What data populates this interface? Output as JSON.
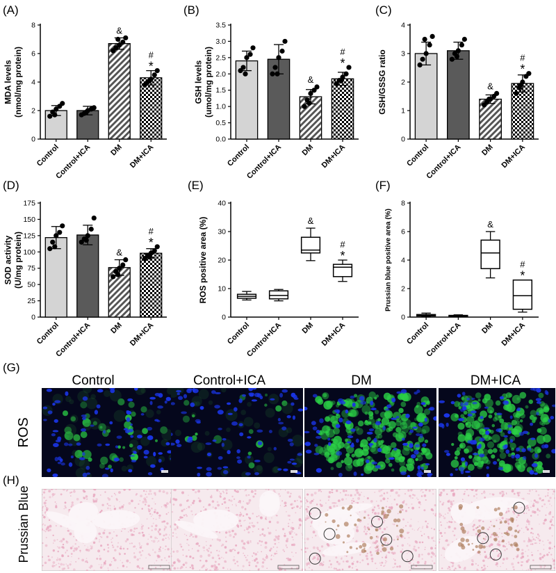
{
  "panels": {
    "A": "(A)",
    "B": "(B)",
    "C": "(C)",
    "D": "(D)",
    "E": "(E)",
    "F": "(F)",
    "G": "(G)",
    "H": "(H)"
  },
  "colors": {
    "control": "#d4d4d4",
    "control_ica": "#5a5a5a",
    "dm_hatch": "#555555",
    "checker": "#000000",
    "ros_bg": "#05071c",
    "ros_nuclei": "#1a35e6",
    "ros_green": "#2bd046",
    "pb_bg": "#f6eaee",
    "pb_pink": "#e8a9c0",
    "pb_brown": "#b08263"
  },
  "micro": {
    "columns": [
      "Control",
      "Control+ICA",
      "DM",
      "DM+ICA"
    ],
    "row_ros": "ROS",
    "row_pb": "Prussian Blue",
    "ros_green_level": [
      0.15,
      0.06,
      0.95,
      0.75
    ],
    "pb_circles": [
      0,
      0,
      6,
      3
    ]
  },
  "chart_data": [
    {
      "type": "bar",
      "panel": "(A)",
      "ylabel": "MDA levels\n(nmol/mg protein)",
      "categories": [
        "Control",
        "Control+ICA",
        "DM",
        "DM+ICA"
      ],
      "values": [
        2.0,
        2.0,
        6.7,
        4.3
      ],
      "errors": [
        0.35,
        0.3,
        0.4,
        0.5
      ],
      "points": [
        [
          1.6,
          1.9,
          2.1,
          2.3,
          2.5,
          1.7
        ],
        [
          1.7,
          1.8,
          2.0,
          2.1,
          2.2,
          1.9
        ],
        [
          6.2,
          6.4,
          6.6,
          6.8,
          7.1,
          7.0
        ],
        [
          3.8,
          4.0,
          4.2,
          4.5,
          4.8,
          4.1
        ]
      ],
      "ylim": [
        0,
        8
      ],
      "yticks": [
        0,
        2,
        4,
        6,
        8
      ],
      "annotations": [
        {
          "index": 2,
          "marks": [
            "&"
          ]
        },
        {
          "index": 3,
          "marks": [
            "#",
            "*"
          ]
        }
      ]
    },
    {
      "type": "bar",
      "panel": "(B)",
      "ylabel": "GSH levels\n(umol/mg protein)",
      "categories": [
        "Control",
        "Control+ICA",
        "DM",
        "DM+ICA"
      ],
      "values": [
        2.4,
        2.45,
        1.3,
        1.85
      ],
      "errors": [
        0.3,
        0.45,
        0.22,
        0.2
      ],
      "points": [
        [
          2.1,
          2.2,
          2.5,
          2.6,
          2.8,
          2.0
        ],
        [
          2.0,
          2.2,
          2.5,
          2.7,
          3.0,
          2.0
        ],
        [
          1.0,
          1.2,
          1.4,
          1.5,
          1.6,
          1.1
        ],
        [
          1.7,
          1.8,
          1.9,
          2.0,
          2.2,
          1.8
        ]
      ],
      "ylim": [
        0,
        3.5
      ],
      "yticks": [
        0.0,
        0.5,
        1.0,
        1.5,
        2.0,
        2.5,
        3.0,
        3.5
      ],
      "annotations": [
        {
          "index": 2,
          "marks": [
            "&"
          ]
        },
        {
          "index": 3,
          "marks": [
            "#",
            "*"
          ]
        }
      ]
    },
    {
      "type": "bar",
      "panel": "(C)",
      "ylabel": "GSH/GSSG ratio",
      "categories": [
        "Control",
        "Control+ICA",
        "DM",
        "DM+ICA"
      ],
      "values": [
        3.0,
        3.1,
        1.4,
        1.95
      ],
      "errors": [
        0.4,
        0.3,
        0.15,
        0.3
      ],
      "points": [
        [
          2.6,
          2.8,
          3.0,
          3.3,
          3.6,
          3.5
        ],
        [
          2.8,
          3.0,
          3.1,
          3.3,
          3.5,
          2.9
        ],
        [
          1.2,
          1.3,
          1.4,
          1.5,
          1.6,
          1.4
        ],
        [
          1.6,
          1.8,
          2.0,
          2.2,
          2.3,
          1.9
        ]
      ],
      "ylim": [
        0,
        4
      ],
      "yticks": [
        0,
        1,
        2,
        3,
        4
      ],
      "annotations": [
        {
          "index": 2,
          "marks": [
            "&"
          ]
        },
        {
          "index": 3,
          "marks": [
            "#",
            "*"
          ]
        }
      ]
    },
    {
      "type": "bar",
      "panel": "(D)",
      "ylabel": "SOD activity\n(U/mg protein)",
      "categories": [
        "Control",
        "Control+ICA",
        "DM",
        "DM+ICA"
      ],
      "values": [
        122,
        126,
        76,
        98
      ],
      "errors": [
        17,
        15,
        12,
        7
      ],
      "points": [
        [
          105,
          115,
          125,
          130,
          140,
          108
        ],
        [
          115,
          120,
          125,
          135,
          152,
          118
        ],
        [
          62,
          70,
          75,
          80,
          88,
          65
        ],
        [
          90,
          95,
          98,
          102,
          108,
          92
        ]
      ],
      "ylim": [
        0,
        175
      ],
      "yticks": [
        0,
        25,
        50,
        75,
        100,
        125,
        150,
        175
      ],
      "annotations": [
        {
          "index": 2,
          "marks": [
            "&"
          ]
        },
        {
          "index": 3,
          "marks": [
            "#",
            "*"
          ]
        }
      ]
    },
    {
      "type": "box",
      "panel": "(E)",
      "ylabel": "ROS positive area (%)",
      "categories": [
        "Control",
        "Control+ICA",
        "DM",
        "DM+ICA"
      ],
      "boxes": [
        {
          "min": 6.0,
          "q1": 6.6,
          "median": 7.3,
          "q3": 8.0,
          "max": 9.0
        },
        {
          "min": 5.7,
          "q1": 6.4,
          "median": 7.6,
          "q3": 9.2,
          "max": 9.7
        },
        {
          "min": 19.8,
          "q1": 22.5,
          "median": 23.5,
          "q3": 28.0,
          "max": 31.2
        },
        {
          "min": 12.5,
          "q1": 14.2,
          "median": 17.5,
          "q3": 18.5,
          "max": 20.0
        }
      ],
      "ylim": [
        0,
        40
      ],
      "yticks": [
        0,
        10,
        20,
        30,
        40
      ],
      "annotations": [
        {
          "index": 2,
          "marks": [
            "&"
          ]
        },
        {
          "index": 3,
          "marks": [
            "#",
            "*"
          ]
        }
      ]
    },
    {
      "type": "box",
      "panel": "(F)",
      "ylabel": "Prussian blue positive area (%)",
      "categories": [
        "Control",
        "Control+ICA",
        "DM",
        "DM+ICA"
      ],
      "boxes": [
        {
          "min": 0.05,
          "q1": 0.08,
          "median": 0.12,
          "q3": 0.18,
          "max": 0.28
        },
        {
          "min": 0.03,
          "q1": 0.06,
          "median": 0.08,
          "q3": 0.12,
          "max": 0.16
        },
        {
          "min": 2.75,
          "q1": 3.4,
          "median": 4.5,
          "q3": 5.4,
          "max": 6.0
        },
        {
          "min": 0.35,
          "q1": 0.55,
          "median": 1.5,
          "q3": 2.6,
          "max": 2.6
        }
      ],
      "ylim": [
        0,
        8
      ],
      "yticks": [
        0,
        2,
        4,
        6,
        8
      ],
      "annotations": [
        {
          "index": 2,
          "marks": [
            "&"
          ]
        },
        {
          "index": 3,
          "marks": [
            "#",
            "*"
          ]
        }
      ]
    }
  ]
}
